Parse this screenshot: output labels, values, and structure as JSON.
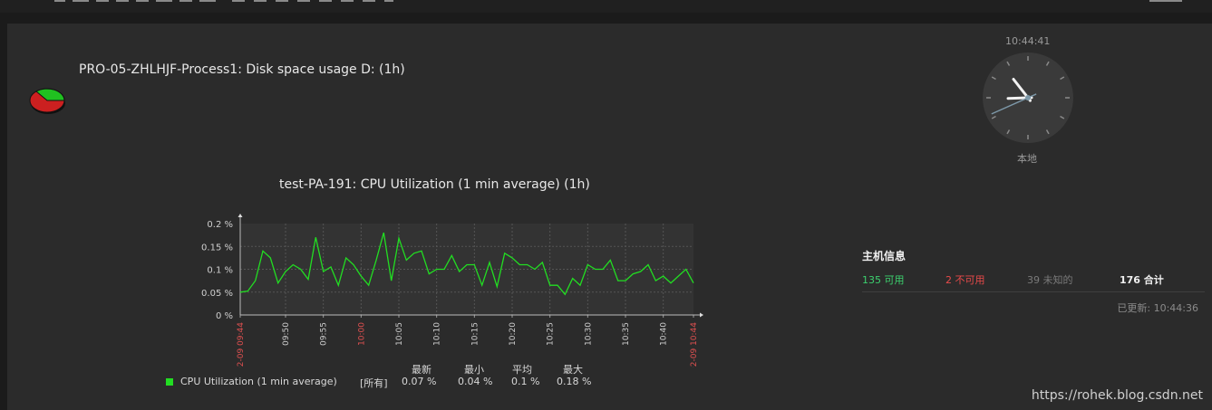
{
  "widget1": {
    "title": "PRO-05-ZHLHJF-Process1: Disk space usage D: (1h)",
    "icon": "pie-chart-icon",
    "colors": {
      "used": "#cc2020",
      "free": "#20c020"
    }
  },
  "clock": {
    "time": "10:44:41",
    "label": "本地",
    "hour": 10,
    "minute": 44,
    "second": 41
  },
  "graph": {
    "title": "test-PA-191: CPU Utilization (1 min average) (1h)",
    "line_color": "#22dd22",
    "legend": {
      "headers": {
        "last": "最新",
        "min": "最小",
        "avg": "平均",
        "max": "最大"
      },
      "item_name": "CPU Utilization (1 min average)",
      "item_function": "[所有]",
      "last": "0.07 %",
      "min": "0.04 %",
      "avg": "0.1 %",
      "max": "0.18 %"
    }
  },
  "chart_data": {
    "type": "line",
    "title": "test-PA-191: CPU Utilization (1 min average) (1h)",
    "ylim": [
      0,
      0.2
    ],
    "y_ticks": [
      "0.2 %",
      "0.15 %",
      "0.1 %",
      "0.05 %",
      "0 %"
    ],
    "x_range": [
      "02-09 09:44",
      "02-09 10:44"
    ],
    "x_tick_labels": [
      {
        "t": 0,
        "label": "02-09 09:44",
        "edge": true
      },
      {
        "t": 6,
        "label": "09:50"
      },
      {
        "t": 11,
        "label": "09:55"
      },
      {
        "t": 16,
        "label": "10:00",
        "major": true
      },
      {
        "t": 21,
        "label": "10:05"
      },
      {
        "t": 26,
        "label": "10:10"
      },
      {
        "t": 31,
        "label": "10:15"
      },
      {
        "t": 36,
        "label": "10:20"
      },
      {
        "t": 41,
        "label": "10:25"
      },
      {
        "t": 46,
        "label": "10:30"
      },
      {
        "t": 51,
        "label": "10:35"
      },
      {
        "t": 56,
        "label": "10:40"
      },
      {
        "t": 60,
        "label": "02-09 10:44",
        "edge": true
      }
    ],
    "series": [
      {
        "name": "CPU Utilization (1 min average)",
        "x": [
          0,
          1,
          2,
          3,
          4,
          5,
          6,
          7,
          8,
          9,
          10,
          11,
          12,
          13,
          14,
          15,
          16,
          17,
          18,
          19,
          20,
          21,
          22,
          23,
          24,
          25,
          26,
          27,
          28,
          29,
          30,
          31,
          32,
          33,
          34,
          35,
          36,
          37,
          38,
          39,
          40,
          41,
          42,
          43,
          44,
          45,
          46,
          47,
          48,
          49,
          50,
          51,
          52,
          53,
          54,
          55,
          56,
          57,
          58,
          59,
          60
        ],
        "values": [
          0.05,
          0.052,
          0.075,
          0.14,
          0.125,
          0.07,
          0.095,
          0.11,
          0.1,
          0.078,
          0.17,
          0.095,
          0.105,
          0.065,
          0.125,
          0.11,
          0.085,
          0.065,
          0.12,
          0.18,
          0.075,
          0.168,
          0.12,
          0.135,
          0.14,
          0.09,
          0.1,
          0.1,
          0.13,
          0.095,
          0.11,
          0.11,
          0.065,
          0.115,
          0.062,
          0.135,
          0.125,
          0.11,
          0.11,
          0.1,
          0.115,
          0.065,
          0.065,
          0.045,
          0.08,
          0.065,
          0.11,
          0.1,
          0.1,
          0.12,
          0.075,
          0.075,
          0.09,
          0.095,
          0.11,
          0.075,
          0.085,
          0.07,
          0.085,
          0.1,
          0.07
        ]
      }
    ]
  },
  "hostinfo": {
    "title": "主机信息",
    "available": "135 可用",
    "unavailable": "2 不可用",
    "unknown": "39 未知的",
    "total": "176 合计",
    "updated": "已更新: 10:44:36",
    "colors": {
      "available": "#3cd06e",
      "unavailable": "#e84a4a",
      "unknown": "#7a7a7a",
      "total": "#f0f0f0"
    }
  },
  "watermark": "https://rohek.blog.csdn.net"
}
